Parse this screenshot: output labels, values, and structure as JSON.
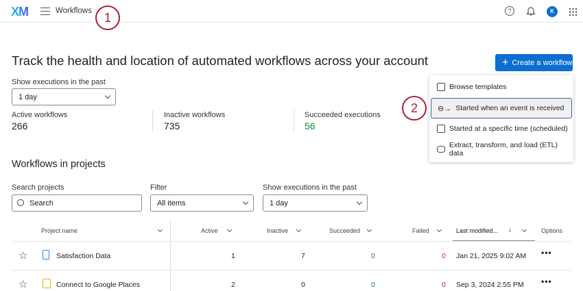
{
  "header": {
    "logo": "XM",
    "menu_icon": "hamburger-icon",
    "title": "Workflows",
    "icons": [
      "help-icon",
      "bell-icon",
      "avatar",
      "apps-grid-icon"
    ],
    "avatar_initial": "K"
  },
  "callouts": [
    "1",
    "2"
  ],
  "page": {
    "heading": "Track the health and location of automated workflows across your account",
    "create_button": "Create a workflow",
    "executions_label": "Show executions in the past",
    "executions_value": "1 day",
    "stats": [
      {
        "label": "Active workflows",
        "value": "266"
      },
      {
        "label": "Inactive workflows",
        "value": "735"
      },
      {
        "label": "Succeeded executions",
        "value": "56"
      }
    ]
  },
  "menu": {
    "items": [
      {
        "icon": "templates-icon",
        "label": "Browse templates"
      },
      {
        "icon": "event-trigger-icon",
        "label": "Started when an event is received"
      },
      {
        "icon": "calendar-clock-icon",
        "label": "Started at a specific time (scheduled)"
      },
      {
        "icon": "etl-database-icon",
        "label": "Extract, transform, and load (ETL) data"
      }
    ]
  },
  "projects": {
    "heading": "Workflows in projects",
    "search_label": "Search projects",
    "search_placeholder": "Search",
    "filter_label": "Filter",
    "filter_value": "All items",
    "exec_label": "Show executions in the past",
    "exec_value": "1 day",
    "columns": [
      "Project name",
      "Active",
      "Inactive",
      "Succeeded",
      "Failed",
      "Last modified...",
      "Options"
    ],
    "rows": [
      {
        "name": "Satisfaction Data",
        "icon": "survey-icon",
        "active": "1",
        "inactive": "7",
        "succeeded": "0",
        "failed": "0",
        "modified": "Jan 21, 2025 9:02 AM"
      },
      {
        "name": "Connect to Google Places",
        "icon": "imported-project-icon",
        "active": "2",
        "inactive": "0",
        "succeeded": "0",
        "failed": "0",
        "modified": "Sep 3, 2024 2:55 PM"
      }
    ]
  },
  "colors": {
    "accent": "#0b6ed0",
    "success": "#1a8a2e",
    "failure": "#d1242f",
    "callout": "#b01c2e"
  }
}
